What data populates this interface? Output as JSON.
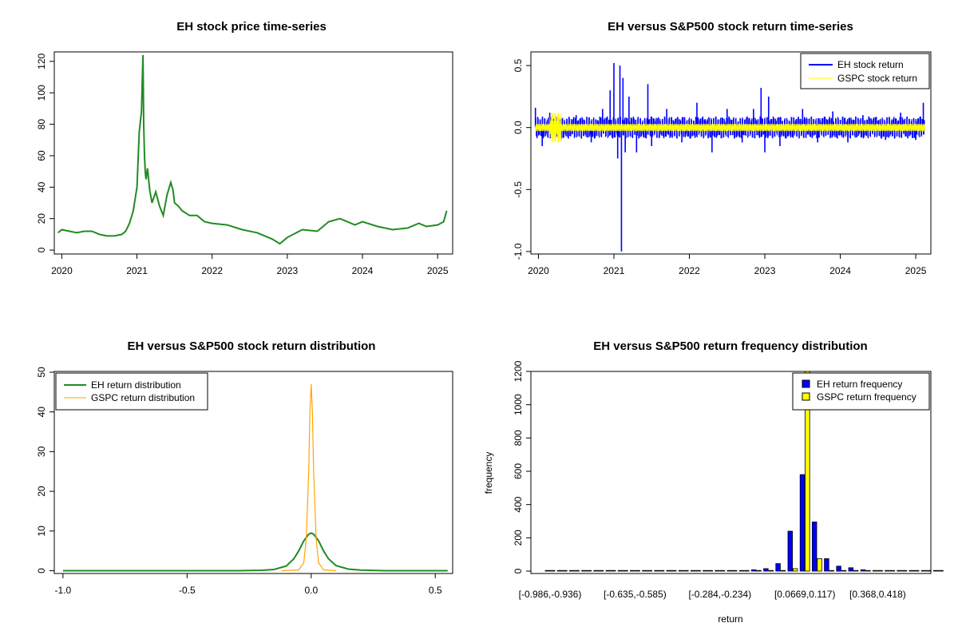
{
  "chart_data": [
    {
      "id": "price",
      "type": "line",
      "title": "EH stock price time-series",
      "xlabel": "",
      "ylabel": "",
      "xlim": [
        2019.9,
        2025.2
      ],
      "ylim": [
        0,
        124
      ],
      "x_ticks": [
        "2020",
        "2021",
        "2022",
        "2023",
        "2024",
        "2025"
      ],
      "y_ticks": [
        "0",
        "20",
        "40",
        "60",
        "80",
        "100",
        "120"
      ],
      "colors": {
        "series": "#228B22"
      },
      "series": [
        {
          "x": [
            2019.95,
            2020.0,
            2020.1,
            2020.2,
            2020.3,
            2020.4,
            2020.5,
            2020.6,
            2020.7,
            2020.8,
            2020.85,
            2020.9,
            2020.95,
            2021.0,
            2021.03,
            2021.06,
            2021.08,
            2021.09,
            2021.1,
            2021.11,
            2021.12,
            2021.14,
            2021.17,
            2021.2,
            2021.25,
            2021.3,
            2021.35,
            2021.4,
            2021.45,
            2021.48,
            2021.5,
            2021.55,
            2021.6,
            2021.7,
            2021.8,
            2021.9,
            2022.0,
            2022.2,
            2022.4,
            2022.6,
            2022.8,
            2022.9,
            2023.0,
            2023.2,
            2023.4,
            2023.55,
            2023.7,
            2023.9,
            2024.0,
            2024.2,
            2024.4,
            2024.6,
            2024.75,
            2024.85,
            2025.0,
            2025.08,
            2025.12
          ],
          "y": [
            11,
            13,
            12,
            11,
            12,
            12,
            10,
            9,
            9,
            10,
            12,
            17,
            25,
            40,
            75,
            88,
            124,
            80,
            60,
            50,
            45,
            52,
            38,
            30,
            37,
            28,
            22,
            35,
            43,
            38,
            30,
            28,
            25,
            22,
            22,
            18,
            17,
            16,
            13,
            11,
            7,
            4,
            8,
            13,
            12,
            18,
            20,
            16,
            18,
            15,
            13,
            14,
            17,
            15,
            16,
            18,
            25
          ]
        }
      ]
    },
    {
      "id": "returns",
      "type": "line",
      "title": "EH versus S&P500 stock return time-series",
      "xlabel": "",
      "ylabel": "",
      "xlim": [
        2019.9,
        2025.2
      ],
      "ylim": [
        -1.0,
        0.55
      ],
      "x_ticks": [
        "2020",
        "2021",
        "2022",
        "2023",
        "2024",
        "2025"
      ],
      "y_ticks": [
        "-1.0",
        "-0.5",
        "0.0",
        "0.5"
      ],
      "legend_position": "top-right",
      "colors": {
        "eh": "#0000FF",
        "gspc": "#FFFF00"
      },
      "series": [
        {
          "name": "EH stock return",
          "spikes_x": [
            2019.96,
            2020.05,
            2020.15,
            2020.3,
            2020.5,
            2020.7,
            2020.85,
            2020.95,
            2021.0,
            2021.05,
            2021.08,
            2021.1,
            2021.12,
            2021.15,
            2021.2,
            2021.3,
            2021.45,
            2021.5,
            2021.7,
            2021.9,
            2022.1,
            2022.3,
            2022.5,
            2022.7,
            2022.85,
            2022.95,
            2023.0,
            2023.05,
            2023.2,
            2023.5,
            2023.7,
            2023.9,
            2024.1,
            2024.3,
            2024.6,
            2024.8,
            2025.0,
            2025.1
          ],
          "spikes_y": [
            0.16,
            -0.15,
            0.12,
            -0.1,
            0.1,
            -0.12,
            0.15,
            0.3,
            0.52,
            -0.25,
            0.5,
            -1.0,
            0.4,
            -0.2,
            0.25,
            -0.2,
            0.35,
            -0.15,
            0.15,
            -0.12,
            0.2,
            -0.2,
            0.15,
            -0.12,
            0.15,
            0.32,
            -0.2,
            0.25,
            -0.15,
            0.15,
            -0.12,
            0.13,
            -0.12,
            0.1,
            -0.1,
            0.12,
            -0.1,
            0.2
          ]
        },
        {
          "name": "GSPC stock return",
          "band": 0.03,
          "covid_x": [
            2020.15,
            2020.3
          ],
          "covid_amp": [
            0.12,
            -0.12
          ]
        }
      ]
    },
    {
      "id": "density",
      "type": "line",
      "title": "EH versus S&P500 stock return distribution",
      "xlabel": "",
      "ylabel": "",
      "xlim": [
        -1.0,
        0.55
      ],
      "ylim": [
        0,
        50
      ],
      "x_ticks": [
        "-1.0",
        "-0.5",
        "0.0",
        "0.5"
      ],
      "y_ticks": [
        "0",
        "10",
        "20",
        "30",
        "40",
        "50"
      ],
      "legend_position": "top-left",
      "colors": {
        "eh": "#228B22",
        "gspc": "#FFA500"
      },
      "series": [
        {
          "name": "EH return distribution",
          "x": [
            -1.0,
            -0.3,
            -0.2,
            -0.15,
            -0.1,
            -0.07,
            -0.05,
            -0.03,
            -0.01,
            0.0,
            0.01,
            0.03,
            0.05,
            0.07,
            0.1,
            0.15,
            0.2,
            0.3,
            0.55
          ],
          "y": [
            0,
            0,
            0.1,
            0.3,
            1.2,
            3.0,
            5.0,
            7.5,
            9.2,
            9.5,
            9.2,
            7.5,
            5.0,
            3.0,
            1.3,
            0.4,
            0.15,
            0,
            0
          ]
        },
        {
          "name": "GSPC return distribution",
          "x": [
            -0.12,
            -0.05,
            -0.03,
            -0.02,
            -0.01,
            -0.005,
            0.0,
            0.005,
            0.01,
            0.02,
            0.03,
            0.05,
            0.1
          ],
          "y": [
            0,
            0.2,
            2.0,
            8.0,
            25.0,
            40.0,
            47.0,
            40.0,
            25.0,
            8.0,
            2.0,
            0.2,
            0
          ]
        }
      ]
    },
    {
      "id": "hist",
      "type": "bar",
      "title": "EH versus S&P500 return frequency distribution",
      "xlabel": "return",
      "ylabel": "frequency",
      "ylim": [
        0,
        1200
      ],
      "y_ticks": [
        "0",
        "200",
        "400",
        "600",
        "800",
        "1000",
        "1200"
      ],
      "x_tick_labels": [
        "[-0.986,-0.936)",
        "[-0.635,-0.585)",
        "[-0.284,-0.234)",
        "[0.0669,0.117)",
        "[0.368,0.418)"
      ],
      "x_tick_bins": [
        0,
        7,
        14,
        21,
        27
      ],
      "legend_position": "top-right",
      "colors": {
        "eh": "#0000FF",
        "gspc": "#FFFF00"
      },
      "series": [
        {
          "name": "EH return frequency",
          "values": [
            1,
            0,
            0,
            0,
            0,
            0,
            0,
            0,
            0,
            0,
            0,
            0,
            0,
            0,
            0,
            1,
            3,
            8,
            15,
            45,
            240,
            580,
            295,
            75,
            30,
            20,
            8,
            4,
            2,
            1,
            0,
            0,
            1
          ]
        },
        {
          "name": "GSPC return frequency",
          "values": [
            0,
            0,
            0,
            0,
            0,
            0,
            0,
            0,
            0,
            0,
            0,
            0,
            0,
            0,
            0,
            0,
            0,
            0,
            0,
            2,
            15,
            1260,
            75,
            2,
            0,
            0,
            0,
            0,
            0,
            0,
            0,
            0,
            0
          ]
        }
      ]
    }
  ]
}
